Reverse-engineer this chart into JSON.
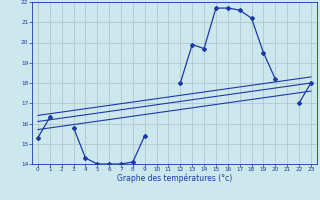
{
  "xlabel": "Graphe des températures (°c)",
  "background_color": "#cde8ec",
  "line_color": "#1a3aaa",
  "grid_color": "#b0c8cc",
  "hours": [
    0,
    1,
    2,
    3,
    4,
    5,
    6,
    7,
    8,
    9,
    10,
    11,
    12,
    13,
    14,
    15,
    16,
    17,
    18,
    19,
    20,
    21,
    22,
    23
  ],
  "temp_main": [
    15.3,
    16.3,
    null,
    15.8,
    14.3,
    14.0,
    14.0,
    14.0,
    14.1,
    15.4,
    null,
    null,
    18.0,
    19.9,
    19.7,
    21.7,
    21.7,
    21.6,
    21.2,
    19.5,
    18.2,
    null,
    17.0,
    18.0
  ],
  "temp_line1_start": 16.4,
  "temp_line1_end": 18.3,
  "temp_line2_start": 16.1,
  "temp_line2_end": 18.0,
  "temp_line3_start": 15.7,
  "temp_line3_end": 17.6,
  "ylim": [
    14,
    22
  ],
  "yticks": [
    14,
    15,
    16,
    17,
    18,
    19,
    20,
    21,
    22
  ],
  "xlim_min": -0.5,
  "xlim_max": 23.5
}
